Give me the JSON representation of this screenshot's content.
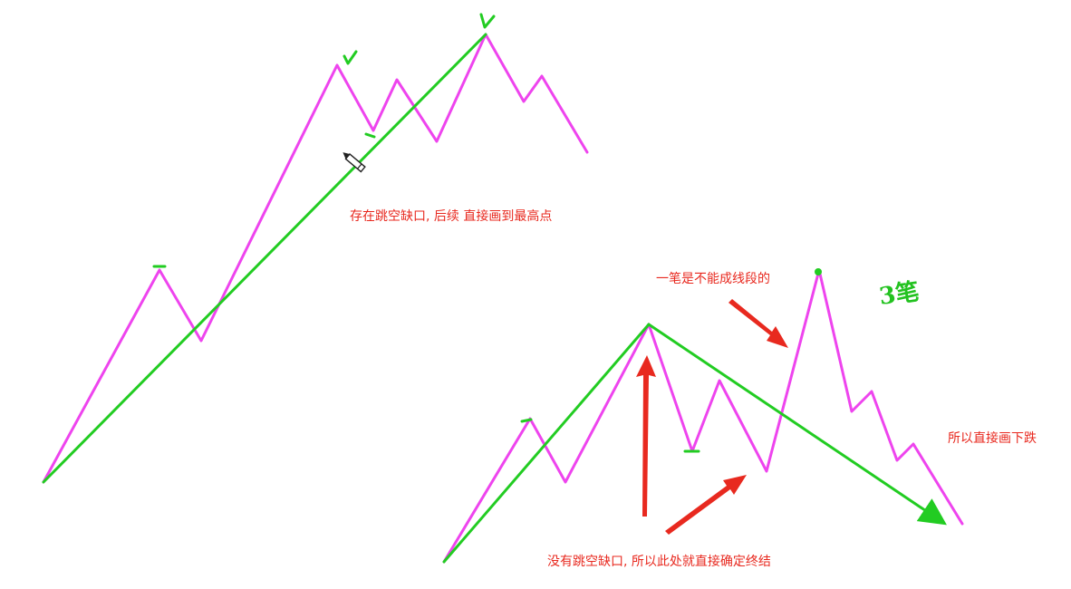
{
  "colors": {
    "price_line": "#ee44ee",
    "segment_line": "#22cc22",
    "annotation_arrow": "#e8291f",
    "annotation_text": "#e8291f",
    "handwriting": "#22c21f"
  },
  "annotations": {
    "top_note": "存在跳空缺口, 后续 直接画到最高点",
    "one_stroke_note": "一笔是不能成线段的",
    "downtrend_note": "所以直接画下跌",
    "bottom_note": "没有跳空缺口, 所以此处就直接确定终结",
    "handwritten_mark": "3笔"
  }
}
